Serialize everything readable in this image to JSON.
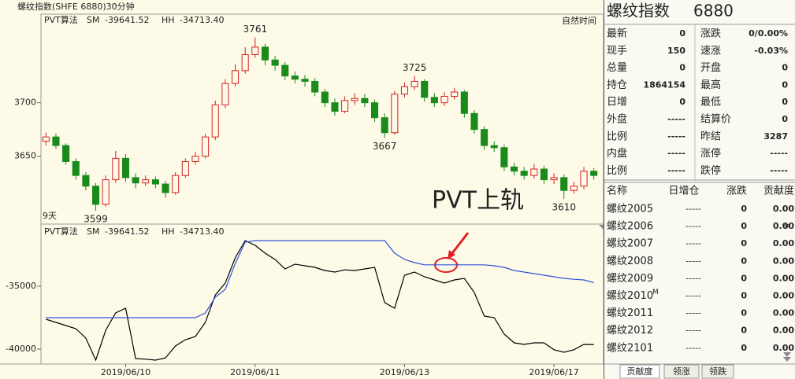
{
  "header": {
    "title": "螺纹指数(SHFE 6880)30分钟"
  },
  "chart_data": [
    {
      "type": "candlestick",
      "period_label": "9天",
      "time_mode": "自然时间",
      "note": "PVT上轨",
      "up_color": "#d62020",
      "down_color": "#1a8a1a",
      "ylim": [
        3588,
        3774
      ],
      "yticks": [
        3650,
        3700
      ],
      "open": [
        3664,
        3668,
        3660,
        3645,
        3632,
        3622,
        3605,
        3628,
        3648,
        3630,
        3625,
        3628,
        3624,
        3616,
        3632,
        3645,
        3650,
        3668,
        3698,
        3718,
        3730,
        3745,
        3752,
        3740,
        3735,
        3725,
        3722,
        3720,
        3710,
        3700,
        3692,
        3702,
        3704,
        3700,
        3686,
        3672,
        3708,
        3715,
        3720,
        3705,
        3700,
        3706,
        3710,
        3690,
        3675,
        3660,
        3658,
        3640,
        3636,
        3632,
        3638,
        3628,
        3630,
        3618,
        3622,
        3636
      ],
      "high": [
        3672,
        3671,
        3662,
        3648,
        3635,
        3625,
        3632,
        3655,
        3652,
        3634,
        3632,
        3631,
        3627,
        3635,
        3648,
        3654,
        3671,
        3702,
        3722,
        3736,
        3752,
        3761,
        3755,
        3744,
        3738,
        3729,
        3726,
        3723,
        3713,
        3704,
        3706,
        3709,
        3708,
        3703,
        3690,
        3711,
        3719,
        3725,
        3722,
        3709,
        3710,
        3714,
        3712,
        3693,
        3678,
        3664,
        3661,
        3644,
        3640,
        3643,
        3641,
        3634,
        3633,
        3626,
        3640,
        3639
      ],
      "low": [
        3660,
        3657,
        3642,
        3628,
        3618,
        3599,
        3603,
        3625,
        3626,
        3620,
        3622,
        3620,
        3611,
        3614,
        3630,
        3642,
        3648,
        3665,
        3695,
        3715,
        3727,
        3742,
        3735,
        3730,
        3721,
        3718,
        3715,
        3706,
        3696,
        3688,
        3690,
        3698,
        3696,
        3682,
        3667,
        3670,
        3705,
        3712,
        3701,
        3696,
        3697,
        3703,
        3686,
        3671,
        3656,
        3654,
        3636,
        3632,
        3628,
        3629,
        3624,
        3624,
        3610,
        3615,
        3619,
        3628
      ],
      "close": [
        3668,
        3660,
        3645,
        3632,
        3622,
        3605,
        3628,
        3648,
        3630,
        3625,
        3628,
        3624,
        3616,
        3632,
        3645,
        3650,
        3668,
        3698,
        3718,
        3730,
        3745,
        3752,
        3740,
        3735,
        3725,
        3722,
        3720,
        3710,
        3700,
        3692,
        3702,
        3704,
        3700,
        3686,
        3672,
        3708,
        3715,
        3720,
        3705,
        3700,
        3706,
        3710,
        3690,
        3675,
        3660,
        3658,
        3640,
        3636,
        3632,
        3638,
        3628,
        3630,
        3618,
        3622,
        3636,
        3632
      ],
      "annotations": [
        3761,
        3725,
        3599,
        3667,
        3610
      ]
    },
    {
      "type": "line",
      "indicator": "PVT算法",
      "ylim": [
        -41125,
        -31000
      ],
      "yticks": [
        -35000,
        -40000
      ],
      "categories": [
        null,
        null,
        null,
        null,
        null,
        null,
        null,
        null,
        "2019/06/10",
        null,
        null,
        null,
        null,
        null,
        null,
        null,
        null,
        null,
        null,
        null,
        null,
        "2019/06/11",
        null,
        null,
        null,
        null,
        null,
        null,
        null,
        null,
        null,
        null,
        null,
        null,
        null,
        null,
        "2019/06/13",
        null,
        null,
        null,
        null,
        null,
        null,
        null,
        null,
        null,
        null,
        null,
        null,
        null,
        null,
        "2019/06/17",
        null,
        null,
        null,
        null
      ],
      "series": [
        {
          "name": "SM",
          "current": "-39641.52",
          "color": "#000000",
          "values": [
            -37625,
            -37875,
            -38125,
            -38375,
            -39125,
            -40875,
            -38500,
            -37125,
            -36750,
            -40750,
            -40800,
            -40875,
            -40700,
            -39750,
            -39250,
            -39000,
            -37875,
            -35700,
            -34750,
            -32750,
            -31375,
            -31750,
            -32375,
            -32875,
            -33625,
            -33250,
            -33375,
            -33500,
            -33750,
            -33875,
            -33700,
            -33750,
            -33625,
            -33500,
            -36300,
            -36750,
            -34125,
            -33875,
            -34250,
            -34500,
            -34750,
            -34500,
            -34375,
            -35500,
            -37375,
            -37500,
            -38800,
            -39500,
            -39625,
            -39500,
            -39500,
            -40050,
            -40250,
            -40050,
            -39625,
            -39641.52
          ]
        },
        {
          "name": "HH",
          "current": "-34713.40",
          "color": "#2f4fd8",
          "values": [
            -37500,
            -37500,
            -37500,
            -37500,
            -37500,
            -37500,
            -37500,
            -37500,
            -37500,
            -37500,
            -37500,
            -37500,
            -37500,
            -37500,
            -37500,
            -37500,
            -37125,
            -35875,
            -35250,
            -33200,
            -31500,
            -31375,
            -31375,
            -31375,
            -31375,
            -31375,
            -31375,
            -31375,
            -31375,
            -31375,
            -31375,
            -31375,
            -31375,
            -31375,
            -31375,
            -32375,
            -32875,
            -33125,
            -33300,
            -33300,
            -33300,
            -33300,
            -33300,
            -33300,
            -33300,
            -33375,
            -33500,
            -33750,
            -33875,
            -34000,
            -34125,
            -34250,
            -34375,
            -34450,
            -34500,
            -34713.4
          ]
        }
      ]
    }
  ],
  "quote": {
    "name": "螺纹指数",
    "code": "6880",
    "rows": [
      {
        "label": "最新",
        "value": 0,
        "label2": "涨跌",
        "value2": "0/0.00%"
      },
      {
        "label": "现手",
        "value": 150,
        "color": "#2a6fa8",
        "label2": "速涨",
        "value2": "-0.03%",
        "color2": "#1a8a1a"
      },
      {
        "label": "总量",
        "value": 0,
        "color": "#2a6fa8",
        "label2": "开盘",
        "value2": 0
      },
      {
        "label": "持仓",
        "value": 1864154,
        "color": "#2a4f88",
        "label2": "最高",
        "value2": 0
      },
      {
        "label": "日增",
        "value": 0,
        "color": "#2a6fa8",
        "label2": "最低",
        "value2": 0
      },
      {
        "label": "外盘",
        "value": "-----",
        "color": "#6b8aa8",
        "label2": "结算价",
        "value2": 0
      },
      {
        "label": "比例",
        "value": "-----",
        "color": "#6b8aa8",
        "label2": "昨结",
        "value2": 3287
      },
      {
        "label": "内盘",
        "value": "-----",
        "color": "#6b8aa8",
        "label2": "涨停",
        "value2": "-----",
        "color2": "#d62020"
      },
      {
        "label": "比例",
        "value": "-----",
        "color": "#6b8aa8",
        "label2": "跌停",
        "value2": "-----",
        "color2": "#1a8a1a"
      }
    ]
  },
  "table": {
    "columns": [
      "名称",
      "日增仓",
      "涨跌",
      "贡献度"
    ],
    "rows": [
      {
        "name": "螺纹2005",
        "oi": "-----",
        "change": 0,
        "contribution": "0.00"
      },
      {
        "name": "螺纹2006",
        "oi": "-----",
        "change": 0,
        "contribution": "0.00"
      },
      {
        "name": "螺纹2007",
        "oi": "-----",
        "change": 0,
        "contribution": "0.00"
      },
      {
        "name": "螺纹2008",
        "oi": "-----",
        "change": 0,
        "contribution": "0.00"
      },
      {
        "name": "螺纹2009",
        "oi": "-----",
        "change": 0,
        "contribution": "0.00"
      },
      {
        "name": "螺纹2010",
        "flag": "M",
        "oi": "-----",
        "change": 0,
        "contribution": "0.00"
      },
      {
        "name": "螺纹2011",
        "oi": "-----",
        "change": 0,
        "contribution": "0.00"
      },
      {
        "name": "螺纹2012",
        "oi": "-----",
        "change": 0,
        "contribution": "0.00"
      },
      {
        "name": "螺纹2101",
        "oi": "-----",
        "change": 0,
        "contribution": "0.00"
      }
    ]
  },
  "tabs": [
    "贡献度",
    "领涨",
    "领跌"
  ]
}
